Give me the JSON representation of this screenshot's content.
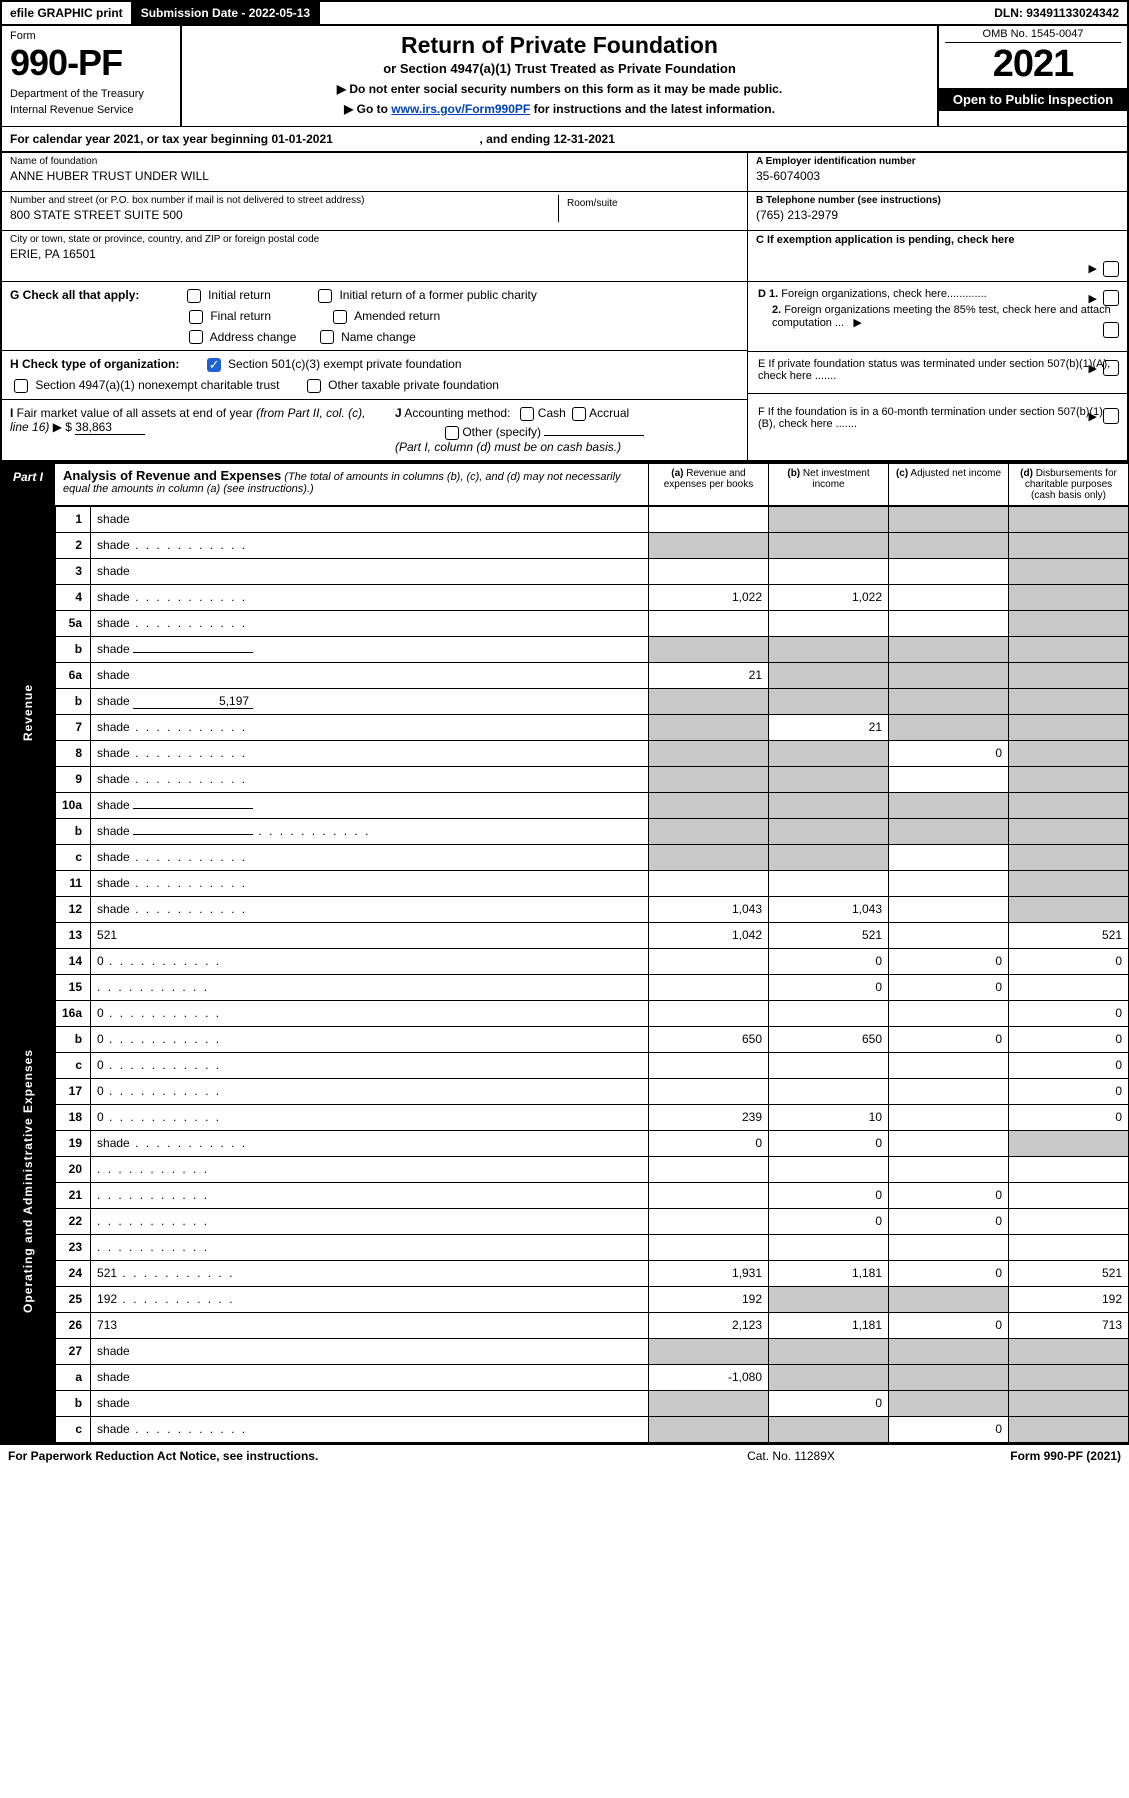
{
  "topbar": {
    "efile": "efile GRAPHIC print",
    "submission_label": "Submission Date - 2022-05-13",
    "dln": "DLN: 93491133024342"
  },
  "header": {
    "form_label": "Form",
    "form_number": "990-PF",
    "dept1": "Department of the Treasury",
    "dept2": "Internal Revenue Service",
    "title": "Return of Private Foundation",
    "subtitle": "or Section 4947(a)(1) Trust Treated as Private Foundation",
    "note1": "▶ Do not enter social security numbers on this form as it may be made public.",
    "note2_pre": "▶ Go to ",
    "note2_link": "www.irs.gov/Form990PF",
    "note2_post": " for instructions and the latest information.",
    "omb": "OMB No. 1545-0047",
    "tax_year": "2021",
    "open": "Open to Public Inspection"
  },
  "cal": {
    "text": "For calendar year 2021, or tax year beginning 01-01-2021",
    "end": ", and ending 12-31-2021"
  },
  "info": {
    "name_lbl": "Name of foundation",
    "name": "ANNE HUBER TRUST UNDER WILL",
    "addr_lbl": "Number and street (or P.O. box number if mail is not delivered to street address)",
    "addr": "800 STATE STREET SUITE 500",
    "room_lbl": "Room/suite",
    "city_lbl": "City or town, state or province, country, and ZIP or foreign postal code",
    "city": "ERIE, PA  16501",
    "a_lbl": "A Employer identification number",
    "a_val": "35-6074003",
    "b_lbl": "B Telephone number (see instructions)",
    "b_val": "(765) 213-2979",
    "c_lbl": "C If exemption application is pending, check here"
  },
  "checks": {
    "g_lbl": "G Check all that apply:",
    "g_opts": [
      "Initial return",
      "Initial return of a former public charity",
      "Final return",
      "Amended return",
      "Address change",
      "Name change"
    ],
    "h_lbl": "H Check type of organization:",
    "h1": "Section 501(c)(3) exempt private foundation",
    "h2": "Section 4947(a)(1) nonexempt charitable trust",
    "h3": "Other taxable private foundation",
    "i_lbl": "I Fair market value of all assets at end of year (from Part II, col. (c), line 16)",
    "i_val": "38,863",
    "j_lbl": "J Accounting method:",
    "j1": "Cash",
    "j2": "Accrual",
    "j3": "Other (specify)",
    "j_note": "(Part I, column (d) must be on cash basis.)",
    "d_lbl": "D 1. Foreign organizations, check here.............",
    "d2": "2. Foreign organizations meeting the 85% test, check here and attach computation ...",
    "e_lbl": "E  If private foundation status was terminated under section 507(b)(1)(A), check here .......",
    "f_lbl": "F  If the foundation is in a 60-month termination under section 507(b)(1)(B), check here ......."
  },
  "part1": {
    "tab": "Part I",
    "title": "Analysis of Revenue and Expenses",
    "title_note": " (The total of amounts in columns (b), (c), and (d) may not necessarily equal the amounts in column (a) (see instructions).)",
    "col_a": "(a) Revenue and expenses per books",
    "col_b": "(b) Net investment income",
    "col_c": "(c) Adjusted net income",
    "col_d": "(d) Disbursements for charitable purposes (cash basis only)"
  },
  "sidebar": {
    "revenue": "Revenue",
    "expenses": "Operating and Administrative Expenses"
  },
  "rows": [
    {
      "n": "1",
      "d": "shade",
      "a": "",
      "b": "shade",
      "c": "shade"
    },
    {
      "n": "2",
      "d": "shade",
      "a": "shade",
      "b": "shade",
      "c": "shade",
      "dots": 1
    },
    {
      "n": "3",
      "d": "shade",
      "a": "",
      "b": "",
      "c": ""
    },
    {
      "n": "4",
      "d": "shade",
      "a": "1,022",
      "b": "1,022",
      "c": "",
      "dots": 1
    },
    {
      "n": "5a",
      "d": "shade",
      "a": "",
      "b": "",
      "c": "",
      "dots": 1
    },
    {
      "n": "b",
      "d": "shade",
      "a": "shade",
      "b": "shade",
      "c": "shade",
      "ul": 1
    },
    {
      "n": "6a",
      "d": "shade",
      "a": "21",
      "b": "shade",
      "c": "shade"
    },
    {
      "n": "b",
      "d": "shade",
      "a": "shade",
      "b": "shade",
      "c": "shade",
      "ul": 1,
      "ulval": "5,197"
    },
    {
      "n": "7",
      "d": "shade",
      "a": "shade",
      "b": "21",
      "c": "shade",
      "dots": 1
    },
    {
      "n": "8",
      "d": "shade",
      "a": "shade",
      "b": "shade",
      "c": "0",
      "dots": 1
    },
    {
      "n": "9",
      "d": "shade",
      "a": "shade",
      "b": "shade",
      "c": "",
      "dots": 1
    },
    {
      "n": "10a",
      "d": "shade",
      "a": "shade",
      "b": "shade",
      "c": "shade",
      "ul": 1
    },
    {
      "n": "b",
      "d": "shade",
      "a": "shade",
      "b": "shade",
      "c": "shade",
      "dots": 1,
      "ul": 1
    },
    {
      "n": "c",
      "d": "shade",
      "a": "shade",
      "b": "shade",
      "c": "",
      "dots": 1
    },
    {
      "n": "11",
      "d": "shade",
      "a": "",
      "b": "",
      "c": "",
      "dots": 1
    },
    {
      "n": "12",
      "d": "shade",
      "a": "1,043",
      "b": "1,043",
      "c": "",
      "dots": 1
    },
    {
      "n": "13",
      "d": "521",
      "a": "1,042",
      "b": "521",
      "c": ""
    },
    {
      "n": "14",
      "d": "0",
      "a": "",
      "b": "0",
      "c": "0",
      "dots": 1
    },
    {
      "n": "15",
      "d": "",
      "a": "",
      "b": "0",
      "c": "0",
      "dots": 1
    },
    {
      "n": "16a",
      "d": "0",
      "a": "",
      "b": "",
      "c": "",
      "dots": 1
    },
    {
      "n": "b",
      "d": "0",
      "a": "650",
      "b": "650",
      "c": "0",
      "dots": 1
    },
    {
      "n": "c",
      "d": "0",
      "a": "",
      "b": "",
      "c": "",
      "dots": 1
    },
    {
      "n": "17",
      "d": "0",
      "a": "",
      "b": "",
      "c": "",
      "dots": 1
    },
    {
      "n": "18",
      "d": "0",
      "a": "239",
      "b": "10",
      "c": "",
      "dots": 1
    },
    {
      "n": "19",
      "d": "shade",
      "a": "0",
      "b": "0",
      "c": "",
      "dots": 1
    },
    {
      "n": "20",
      "d": "",
      "a": "",
      "b": "",
      "c": "",
      "dots": 1
    },
    {
      "n": "21",
      "d": "",
      "a": "",
      "b": "0",
      "c": "0",
      "dots": 1
    },
    {
      "n": "22",
      "d": "",
      "a": "",
      "b": "0",
      "c": "0",
      "dots": 1
    },
    {
      "n": "23",
      "d": "",
      "a": "",
      "b": "",
      "c": "",
      "dots": 1
    },
    {
      "n": "24",
      "d": "521",
      "a": "1,931",
      "b": "1,181",
      "c": "0",
      "dots": 1
    },
    {
      "n": "25",
      "d": "192",
      "a": "192",
      "b": "shade",
      "c": "shade",
      "dots": 1
    },
    {
      "n": "26",
      "d": "713",
      "a": "2,123",
      "b": "1,181",
      "c": "0"
    },
    {
      "n": "27",
      "d": "shade",
      "a": "shade",
      "b": "shade",
      "c": "shade"
    },
    {
      "n": "a",
      "d": "shade",
      "a": "-1,080",
      "b": "shade",
      "c": "shade"
    },
    {
      "n": "b",
      "d": "shade",
      "a": "shade",
      "b": "0",
      "c": "shade"
    },
    {
      "n": "c",
      "d": "shade",
      "a": "shade",
      "b": "shade",
      "c": "0",
      "dots": 1
    }
  ],
  "footer": {
    "left": "For Paperwork Reduction Act Notice, see instructions.",
    "mid": "Cat. No. 11289X",
    "right": "Form 990-PF (2021)"
  }
}
